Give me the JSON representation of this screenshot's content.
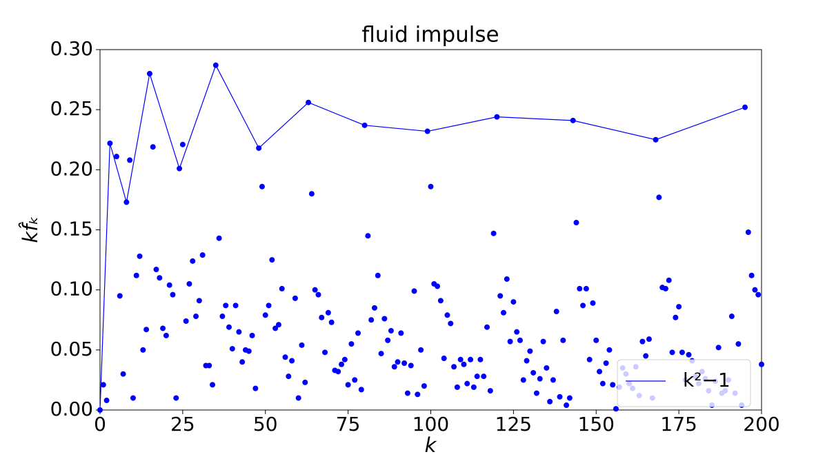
{
  "chart_data": {
    "type": "scatter",
    "title": "fluid impulse",
    "xlabel": "k",
    "ylabel": "kf̂ₖ",
    "xlim": [
      0,
      200
    ],
    "ylim": [
      0,
      0.3
    ],
    "xticks": [
      0,
      25,
      50,
      75,
      100,
      125,
      150,
      175,
      200
    ],
    "yticks": [
      {
        "value": 0,
        "label": "0.00"
      },
      {
        "value": 0.05,
        "label": "0.05"
      },
      {
        "value": 0.1,
        "label": "0.10"
      },
      {
        "value": 0.15,
        "label": "0.15"
      },
      {
        "value": 0.2,
        "label": "0.20"
      },
      {
        "value": 0.25,
        "label": "0.25"
      },
      {
        "value": 0.3,
        "label": "0.30"
      }
    ],
    "legend": "lower right",
    "series": [
      {
        "type": "scatter",
        "color": "#0000ff",
        "x": [
          0,
          1,
          2,
          3,
          5,
          6,
          7,
          8,
          9,
          10,
          11,
          12,
          13,
          14,
          15,
          16,
          17,
          18,
          19,
          20,
          21,
          22,
          23,
          24,
          25,
          26,
          27,
          28,
          29,
          30,
          31,
          32,
          33,
          34,
          35,
          36,
          37,
          38,
          39,
          40,
          41,
          42,
          43,
          44,
          45,
          46,
          47,
          48,
          49,
          50,
          51,
          52,
          53,
          54,
          55,
          56,
          57,
          58,
          59,
          60,
          61,
          62,
          63,
          64,
          65,
          66,
          67,
          68,
          69,
          70,
          71,
          72,
          73,
          74,
          75,
          76,
          77,
          78,
          79,
          80,
          81,
          82,
          83,
          84,
          85,
          86,
          87,
          88,
          89,
          90,
          91,
          92,
          93,
          94,
          95,
          96,
          97,
          98,
          99,
          100,
          101,
          102,
          103,
          104,
          105,
          106,
          107,
          108,
          109,
          110,
          111,
          112,
          113,
          114,
          115,
          116,
          117,
          118,
          119,
          120,
          121,
          122,
          123,
          124,
          125,
          126,
          127,
          128,
          129,
          130,
          131,
          132,
          133,
          134,
          135,
          136,
          137,
          138,
          139,
          140,
          141,
          142,
          143,
          144,
          145,
          146,
          147,
          148,
          149,
          150,
          151,
          152,
          153,
          154,
          155,
          156,
          157,
          158,
          159,
          160,
          161,
          162,
          163,
          164,
          165,
          166,
          167,
          168,
          169,
          170,
          171,
          172,
          173,
          174,
          175,
          176,
          177,
          178,
          179,
          180,
          181,
          182,
          183,
          184,
          185,
          186,
          187,
          188,
          189,
          190,
          191,
          192,
          193,
          194,
          195,
          196,
          197,
          198,
          199,
          200
        ],
        "values": [
          0,
          0.021,
          0.008,
          0.222,
          0.211,
          0.095,
          0.03,
          0.173,
          0.208,
          0.01,
          0.112,
          0.128,
          0.05,
          0.067,
          0.28,
          0.219,
          0.117,
          0.11,
          0.068,
          0.062,
          0.104,
          0.096,
          0.01,
          0.201,
          0.221,
          0.074,
          0.105,
          0.124,
          0.078,
          0.091,
          0.129,
          0.037,
          0.037,
          0.021,
          0.287,
          0.143,
          0.078,
          0.087,
          0.069,
          0.051,
          0.087,
          0.065,
          0.04,
          0.05,
          0.049,
          0.062,
          0.018,
          0.218,
          0.186,
          0.079,
          0.087,
          0.125,
          0.068,
          0.071,
          0.101,
          0.044,
          0.028,
          0.041,
          0.093,
          0.01,
          0.054,
          0.023,
          0.256,
          0.18,
          0.1,
          0.096,
          0.077,
          0.048,
          0.081,
          0.073,
          0.033,
          0.032,
          0.038,
          0.042,
          0.021,
          0.055,
          0.025,
          0.064,
          0.017,
          0.237,
          0.145,
          0.075,
          0.085,
          0.112,
          0.047,
          0.076,
          0.058,
          0.066,
          0.036,
          0.04,
          0.064,
          0.039,
          0.014,
          0.037,
          0.099,
          0.013,
          0.05,
          0.02,
          0.232,
          0.186,
          0.105,
          0.103,
          0.091,
          0.043,
          0.079,
          0.072,
          0.036,
          0.019,
          0.042,
          0.038,
          0.022,
          0.042,
          0.019,
          0.028,
          0.042,
          0.028,
          0.069,
          0.016,
          0.147,
          0.244,
          0.095,
          0.081,
          0.109,
          0.057,
          0.09,
          0.065,
          0.058,
          0.025,
          0.041,
          0.049,
          0.031,
          0.014,
          0.026,
          0.057,
          0.035,
          0.007,
          0.025,
          0.082,
          0.011,
          0.058,
          0.004,
          0.01,
          0.241,
          0.156,
          0.101,
          0.087,
          0.101,
          0.042,
          0.089,
          0.058,
          0.032,
          0.022,
          0.039,
          0.05,
          0.021,
          0.001,
          0.019,
          0.035,
          0.03,
          0.022,
          0.018,
          0.036,
          0.012,
          0.057,
          0.045,
          0.059,
          0.01,
          0.225,
          0.177,
          0.102,
          0.101,
          0.108,
          0.048,
          0.077,
          0.086,
          0.048,
          0.025,
          0.046,
          0.041,
          0.028,
          0.022,
          0.032,
          0.026,
          0.016,
          0.004,
          0.024,
          0.052,
          0.014,
          0.016,
          0.025,
          0.078,
          0.014,
          0.055,
          0.004,
          0.252,
          0.148,
          0.112,
          0.1,
          0.096,
          0.038
        ]
      },
      {
        "type": "line",
        "name": "k²−1",
        "color": "#0000ff",
        "x": [
          0,
          3,
          8,
          15,
          24,
          35,
          48,
          63,
          80,
          99,
          120,
          143,
          168,
          195
        ],
        "values": [
          0,
          0.222,
          0.173,
          0.28,
          0.201,
          0.287,
          0.218,
          0.256,
          0.237,
          0.232,
          0.244,
          0.241,
          0.225,
          0.252
        ]
      }
    ]
  }
}
